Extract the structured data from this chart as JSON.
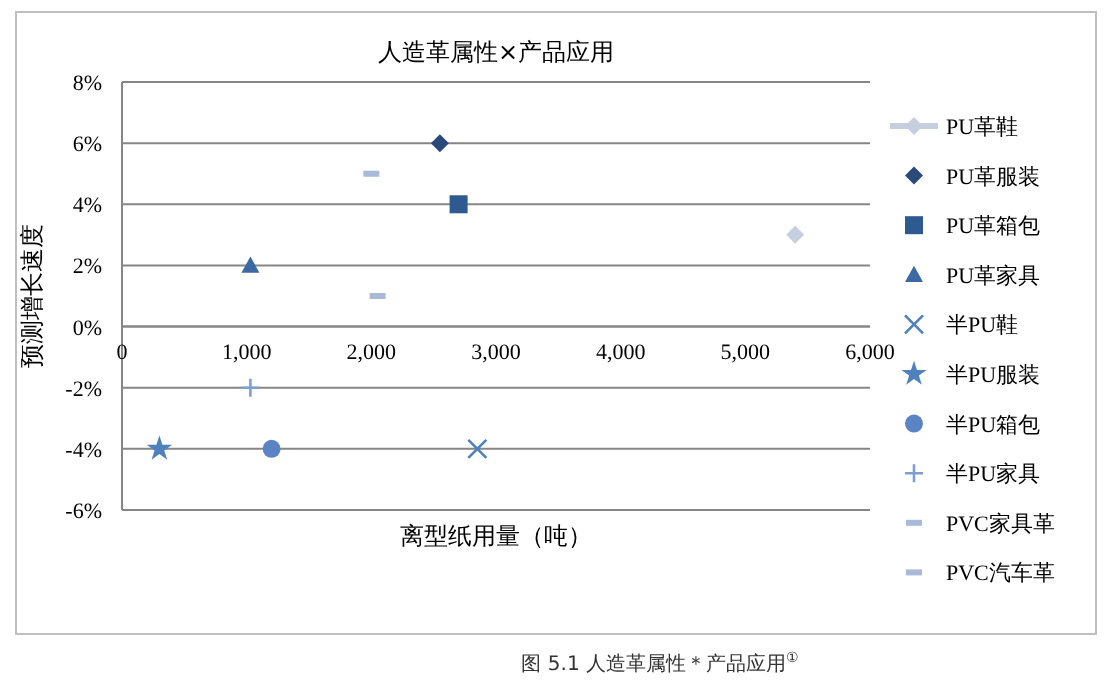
{
  "chart_data": {
    "type": "scatter",
    "title": "人造革属性×产品应用",
    "xlabel": "离型纸用量（吨）",
    "ylabel": "预测增长速度",
    "annotations": [
      "图 5.1 人造革属性＊产品应用$^{①}$"
    ],
    "xlim": [
      0,
      6000
    ],
    "xticks": [
      0,
      {
        "value": 1000,
        "label": "1,000"
      },
      {
        "value": 2000,
        "label": "2,000"
      },
      {
        "value": 3000,
        "label": "3,000"
      },
      {
        "value": 4000,
        "label": "4,000"
      },
      {
        "value": 5000,
        "label": "5,000"
      },
      {
        "value": 6000,
        "label": "6,000"
      }
    ],
    "ylim": [
      -6,
      8
    ],
    "yticks": [
      {
        "value": -6,
        "label": "-6%"
      },
      {
        "value": -4,
        "label": "-4%"
      },
      {
        "value": -2,
        "label": "-2%"
      },
      {
        "value": 0,
        "label": "0%"
      },
      {
        "value": 2,
        "label": "2%"
      },
      {
        "value": 4,
        "label": "4%"
      },
      {
        "value": 6,
        "label": "6%"
      },
      {
        "value": 8,
        "label": "8%"
      }
    ],
    "grid": "y",
    "legend": "right",
    "series": [
      {
        "name": "PU革鞋",
        "type": "line",
        "marker": "diamond",
        "color": "#c6cfe0",
        "x": [
          5400
        ],
        "values": [
          3
        ]
      },
      {
        "name": "PU革服装",
        "marker": "diamond",
        "color": "#2b4a7a",
        "x": [
          2550
        ],
        "values": [
          6
        ]
      },
      {
        "name": "PU革箱包",
        "marker": "square",
        "color": "#2f5a8f",
        "x": [
          2700
        ],
        "values": [
          4
        ]
      },
      {
        "name": "PU革家具",
        "marker": "triangle",
        "color": "#3a69a3",
        "x": [
          1030
        ],
        "values": [
          2
        ]
      },
      {
        "name": "半PU鞋",
        "marker": "cross",
        "color": "#4f81bd",
        "x": [
          2850
        ],
        "values": [
          -4
        ]
      },
      {
        "name": "半PU服装",
        "marker": "star",
        "color": "#4f81bd",
        "x": [
          300
        ],
        "values": [
          -4
        ]
      },
      {
        "name": "半PU箱包",
        "marker": "circle",
        "color": "#5b84c4",
        "x": [
          1200
        ],
        "values": [
          -4
        ]
      },
      {
        "name": "半PU家具",
        "marker": "plus",
        "color": "#7f9fd0",
        "x": [
          1030
        ],
        "values": [
          -2
        ]
      },
      {
        "name": "PVC家具革",
        "color": "#a9b9d8",
        "x": [
          2050
        ],
        "values": [
          1
        ]
      },
      {
        "name": "PVC汽车革",
        "color": "#a9b9d8",
        "x": [
          2000
        ],
        "values": [
          5
        ]
      }
    ]
  }
}
